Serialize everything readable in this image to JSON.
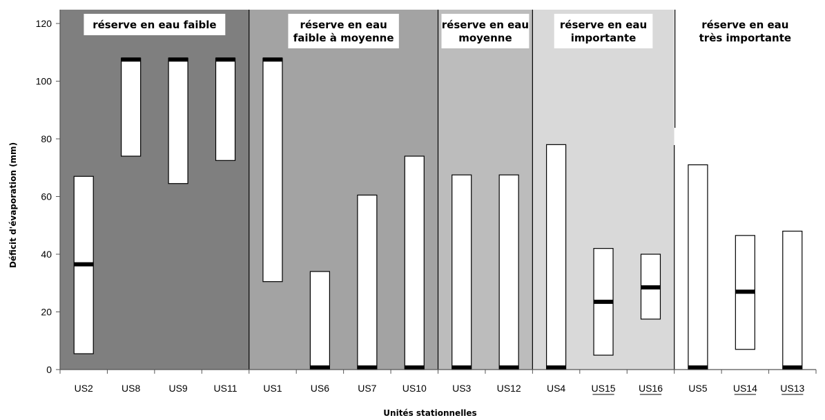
{
  "chart_data": {
    "type": "bar",
    "subtype": "floating-range",
    "xlabel": "Unités stationnelles",
    "ylabel": "Déficit d'évaporation (mm)",
    "ylim": [
      0,
      120
    ],
    "yticks": [
      0,
      20,
      40,
      60,
      80,
      100,
      120
    ],
    "categories": [
      "US2",
      "US8",
      "US9",
      "US11",
      "US1",
      "US6",
      "US7",
      "US10",
      "US3",
      "US12",
      "US4",
      "US15",
      "US16",
      "US5",
      "US14",
      "US13"
    ],
    "underlined_categories": [
      "US15",
      "US16",
      "US14",
      "US13"
    ],
    "ranges": [
      {
        "category": "US2",
        "min": 5.5,
        "max": 67,
        "marker": 36.5
      },
      {
        "category": "US8",
        "min": 74,
        "max": 108,
        "marker": 107.5
      },
      {
        "category": "US9",
        "min": 64.5,
        "max": 108,
        "marker": 107.5
      },
      {
        "category": "US11",
        "min": 72.5,
        "max": 108,
        "marker": 107.5
      },
      {
        "category": "US1",
        "min": 30.5,
        "max": 108,
        "marker": 107.5
      },
      {
        "category": "US6",
        "min": 0,
        "max": 34,
        "marker": 0
      },
      {
        "category": "US7",
        "min": 0,
        "max": 60.5,
        "marker": 0
      },
      {
        "category": "US10",
        "min": 0,
        "max": 74,
        "marker": 0
      },
      {
        "category": "US3",
        "min": 0,
        "max": 67.5,
        "marker": 0
      },
      {
        "category": "US12",
        "min": 0,
        "max": 67.5,
        "marker": 0
      },
      {
        "category": "US4",
        "min": 0,
        "max": 78,
        "marker": 0
      },
      {
        "category": "US15",
        "min": 5,
        "max": 42,
        "marker": 23.5
      },
      {
        "category": "US16",
        "min": 17.5,
        "max": 40,
        "marker": 28.5
      },
      {
        "category": "US5",
        "min": 0,
        "max": 71,
        "marker": 0
      },
      {
        "category": "US14",
        "min": 7,
        "max": 46.5,
        "marker": 27
      },
      {
        "category": "US13",
        "min": 0,
        "max": 48,
        "marker": 0
      }
    ],
    "groups": [
      {
        "label_lines": [
          "réserve en eau faible"
        ],
        "first": 0,
        "last": 3,
        "color": "#7f7f7f"
      },
      {
        "label_lines": [
          "réserve en eau",
          "faible à moyenne"
        ],
        "first": 4,
        "last": 7,
        "color": "#a3a3a3"
      },
      {
        "label_lines": [
          "réserve en eau",
          "moyenne"
        ],
        "first": 8,
        "last": 9,
        "color": "#bcbcbc"
      },
      {
        "label_lines": [
          "réserve en eau",
          "importante"
        ],
        "first": 10,
        "last": 12,
        "color": "#d9d9d9"
      },
      {
        "label_lines": [
          "réserve en eau",
          "très importante"
        ],
        "first": 13,
        "last": 15,
        "color": "#ffffff"
      }
    ],
    "grid": false,
    "legend": "none"
  }
}
